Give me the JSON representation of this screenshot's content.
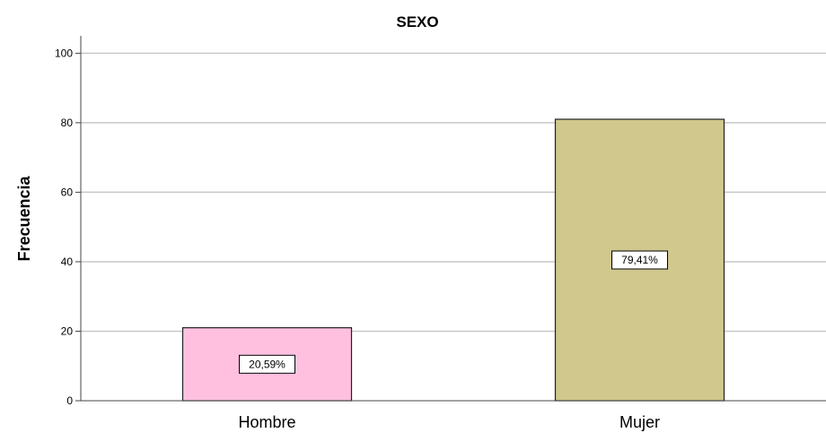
{
  "chart_data": {
    "type": "bar",
    "title": "SEXO",
    "xlabel": "",
    "ylabel": "Frecuencia",
    "categories": [
      "Hombre",
      "Mujer"
    ],
    "values": [
      21,
      81
    ],
    "data_labels": [
      "20,59%",
      "79,41%"
    ],
    "ylim": [
      0,
      105
    ],
    "yticks": [
      0,
      20,
      40,
      60,
      80,
      100
    ],
    "grid": true,
    "colors": [
      "#ffc0e0",
      "#d0c88c"
    ]
  }
}
